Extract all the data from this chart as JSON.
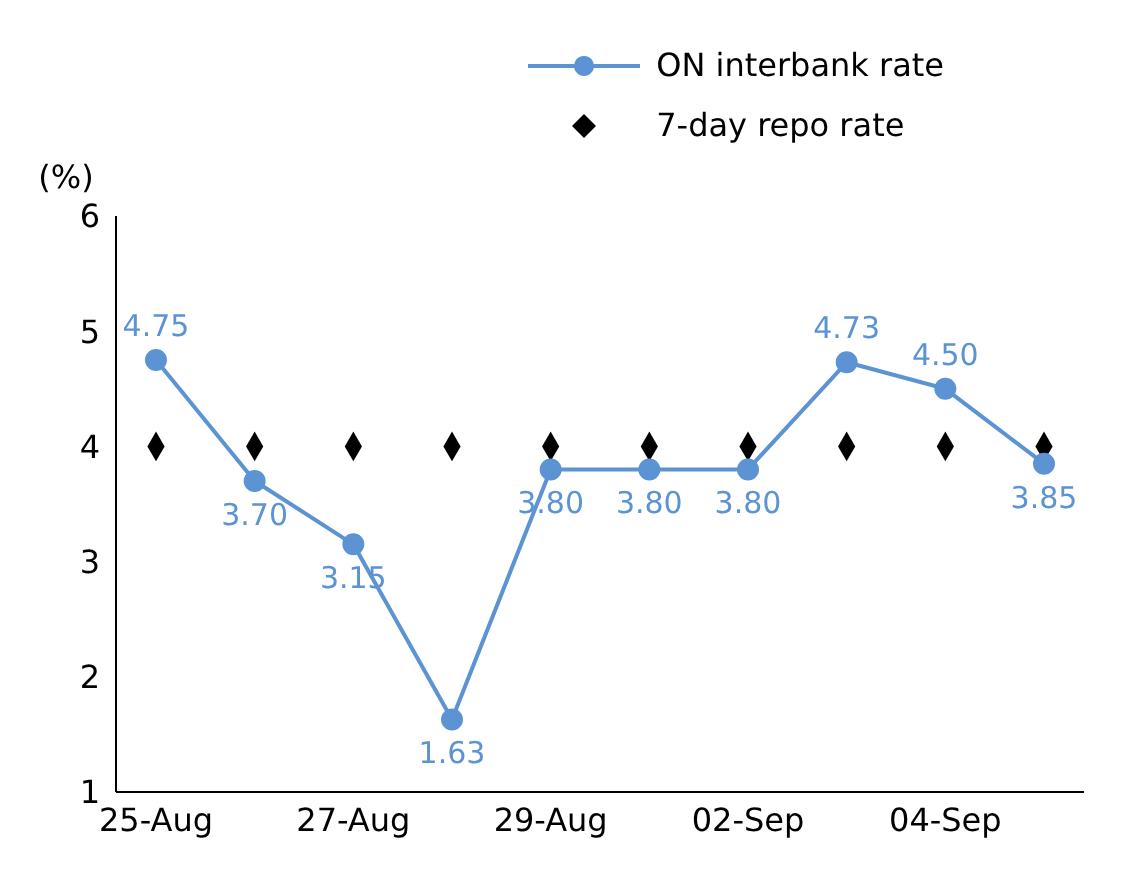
{
  "chart_data": {
    "type": "line",
    "ylabel": "(%)",
    "categories": [
      "25-Aug",
      null,
      "27-Aug",
      null,
      "29-Aug",
      null,
      "02-Sep",
      null,
      "04-Sep",
      null
    ],
    "series": [
      {
        "name": "ON interbank rate",
        "color": "#5b93d3",
        "marker": "circle",
        "values": [
          4.75,
          3.7,
          3.15,
          1.63,
          3.8,
          3.8,
          3.8,
          4.73,
          4.5,
          3.85
        ],
        "value_labels": [
          "4.75",
          "3.70",
          "3.15",
          "1.63",
          "3.80",
          "3.80",
          "3.80",
          "4.73",
          "4.50",
          "3.85"
        ]
      },
      {
        "name": "7-day repo rate",
        "type": "scatter",
        "color": "#000000",
        "marker": "diamond",
        "values": [
          4,
          4,
          4,
          4,
          4,
          4,
          4,
          4,
          4,
          4
        ]
      }
    ],
    "ylim": [
      1,
      6
    ],
    "yticks": [
      1,
      2,
      3,
      4,
      5,
      6
    ],
    "legend": "top right"
  }
}
